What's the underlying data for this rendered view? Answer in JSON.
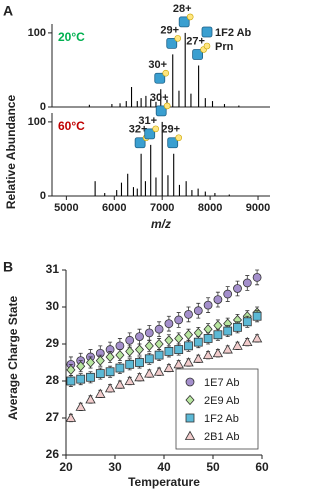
{
  "chart_data": [
    {
      "type": "spectrum",
      "panel": "A",
      "ylabel": "Relative Abundance",
      "xlabel": "m/z",
      "xlim": [
        4700,
        9250
      ],
      "xticks": [
        5000,
        6000,
        7000,
        8000,
        9000
      ],
      "legend": [
        {
          "name": "1F2 Ab",
          "color": "#3a9fd0"
        },
        {
          "name": "Prn",
          "color": "#ffe680"
        }
      ],
      "spectra": [
        {
          "name": "20°C",
          "color": "#00b050",
          "ylim": [
            0,
            112
          ],
          "yticks": [
            0,
            100
          ],
          "x": [
            5480,
            5950,
            6120,
            6250,
            6360,
            6480,
            6560,
            6660,
            6760,
            6870,
            6970,
            7100,
            7220,
            7350,
            7480,
            7600,
            7760,
            7900,
            8050,
            8300,
            8600
          ],
          "values": [
            3,
            4,
            5,
            8,
            27,
            8,
            12,
            15,
            10,
            7,
            24,
            10,
            71,
            22,
            100,
            18,
            56,
            12,
            8,
            4,
            2
          ],
          "annotations": [
            {
              "label": "30+",
              "x": 6970,
              "y": 24
            },
            {
              "label": "29+",
              "x": 7220,
              "y": 71
            },
            {
              "label": "28+",
              "x": 7480,
              "y": 100
            },
            {
              "label": "27+",
              "x": 7760,
              "y": 56
            }
          ]
        },
        {
          "name": "60°C",
          "color": "#c00000",
          "ylim": [
            0,
            112
          ],
          "yticks": [
            0,
            100
          ],
          "x": [
            5600,
            5800,
            6050,
            6150,
            6280,
            6400,
            6480,
            6560,
            6650,
            6760,
            6870,
            7000,
            7120,
            7240,
            7360,
            7500,
            7620,
            7750,
            7900,
            8100,
            8400
          ],
          "values": [
            20,
            4,
            8,
            18,
            30,
            12,
            10,
            57,
            20,
            69,
            25,
            100,
            28,
            57,
            15,
            20,
            8,
            10,
            6,
            4,
            2
          ],
          "annotations": [
            {
              "label": "32+",
              "x": 6560,
              "y": 57
            },
            {
              "label": "31+",
              "x": 6760,
              "y": 69
            },
            {
              "label": "30+",
              "x": 7000,
              "y": 100
            },
            {
              "label": "29+",
              "x": 7240,
              "y": 57
            }
          ]
        }
      ]
    },
    {
      "type": "scatter",
      "panel": "B",
      "xlabel": "Temperature",
      "ylabel": "Average Charge State",
      "xlim": [
        20,
        60
      ],
      "xticks": [
        20,
        30,
        40,
        50,
        60
      ],
      "ylim": [
        26,
        31
      ],
      "yticks": [
        26,
        27,
        28,
        29,
        30,
        31
      ],
      "legend_position": "lower right",
      "x": [
        21,
        23,
        25,
        27,
        29,
        31,
        33,
        35,
        37,
        39,
        41,
        43,
        45,
        47,
        49,
        51,
        53,
        55,
        57,
        59
      ],
      "series": [
        {
          "name": "1E7 Ab",
          "color": "#a48fcc",
          "marker": "circle",
          "values": [
            28.45,
            28.55,
            28.65,
            28.75,
            28.85,
            28.95,
            29.1,
            29.2,
            29.3,
            29.4,
            29.55,
            29.65,
            29.8,
            29.9,
            30.05,
            30.2,
            30.35,
            30.5,
            30.65,
            30.8
          ],
          "errors": [
            0.2,
            0.2,
            0.2,
            0.2,
            0.2,
            0.2,
            0.2,
            0.2,
            0.2,
            0.2,
            0.2,
            0.2,
            0.2,
            0.2,
            0.2,
            0.2,
            0.2,
            0.2,
            0.2,
            0.2
          ]
        },
        {
          "name": "2E9 Ab",
          "color": "#b8e6a0",
          "marker": "diamond",
          "values": [
            28.3,
            28.4,
            28.5,
            28.55,
            28.65,
            28.7,
            28.8,
            28.85,
            28.95,
            29.0,
            29.1,
            29.15,
            29.25,
            29.3,
            29.4,
            29.5,
            29.55,
            29.65,
            29.75,
            29.85
          ],
          "errors": [
            0.15,
            0.15,
            0.15,
            0.15,
            0.15,
            0.15,
            0.15,
            0.15,
            0.15,
            0.15,
            0.15,
            0.15,
            0.15,
            0.15,
            0.15,
            0.15,
            0.15,
            0.15,
            0.15,
            0.15
          ]
        },
        {
          "name": "1F2 Ab",
          "color": "#5cb9d6",
          "marker": "square",
          "values": [
            28.0,
            28.05,
            28.1,
            28.2,
            28.25,
            28.35,
            28.45,
            28.5,
            28.6,
            28.7,
            28.8,
            28.85,
            28.95,
            29.05,
            29.15,
            29.25,
            29.35,
            29.45,
            29.6,
            29.75
          ],
          "errors": [
            0.15,
            0.15,
            0.15,
            0.15,
            0.15,
            0.15,
            0.15,
            0.15,
            0.15,
            0.15,
            0.15,
            0.15,
            0.15,
            0.15,
            0.15,
            0.15,
            0.15,
            0.15,
            0.15,
            0.15
          ]
        },
        {
          "name": "2B1 Ab",
          "color": "#f2cccc",
          "marker": "triangle",
          "values": [
            27.0,
            27.3,
            27.5,
            27.65,
            27.8,
            27.9,
            28.0,
            28.1,
            28.2,
            28.25,
            28.35,
            28.45,
            28.5,
            28.6,
            28.7,
            28.75,
            28.85,
            28.95,
            29.05,
            29.15
          ],
          "errors": [
            0.1,
            0.1,
            0.1,
            0.1,
            0.1,
            0.1,
            0.1,
            0.1,
            0.1,
            0.1,
            0.1,
            0.1,
            0.1,
            0.1,
            0.1,
            0.1,
            0.1,
            0.1,
            0.1,
            0.1
          ]
        }
      ]
    }
  ]
}
